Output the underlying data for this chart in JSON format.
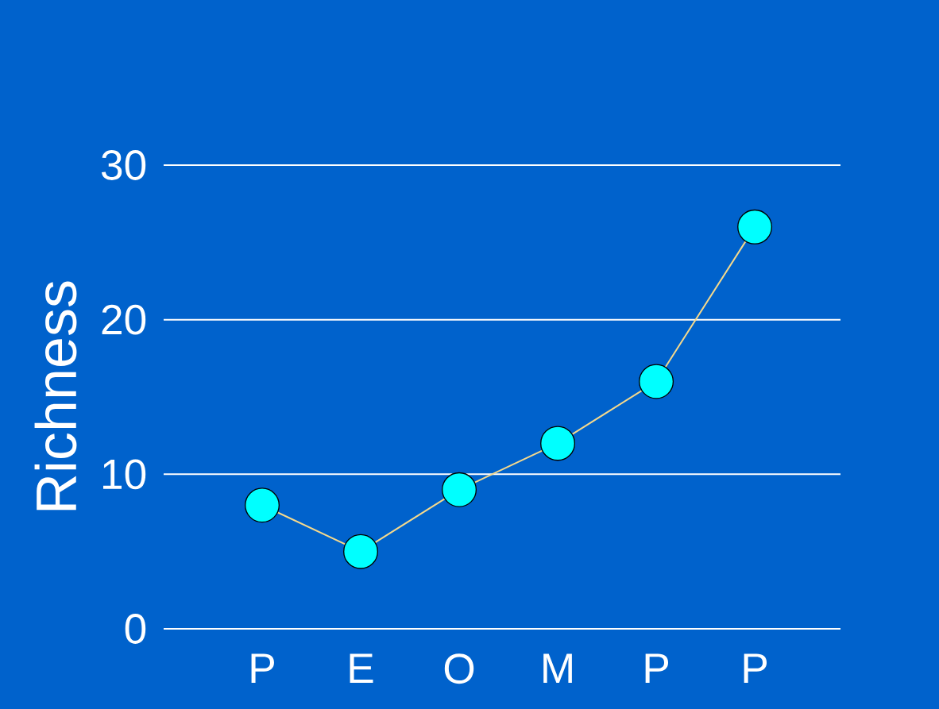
{
  "chart_data": {
    "type": "line",
    "ylabel": "Richness",
    "categories": [
      "P",
      "E",
      "O",
      "M",
      "P",
      "P"
    ],
    "series": [
      {
        "color": "#00ffff",
        "values": [
          8,
          5,
          9,
          12,
          16,
          26
        ]
      }
    ],
    "ylim": [
      0,
      30
    ],
    "yticks": [
      0,
      10,
      20,
      30
    ],
    "grid": "y",
    "marker": "circle",
    "line_style": "solid"
  }
}
